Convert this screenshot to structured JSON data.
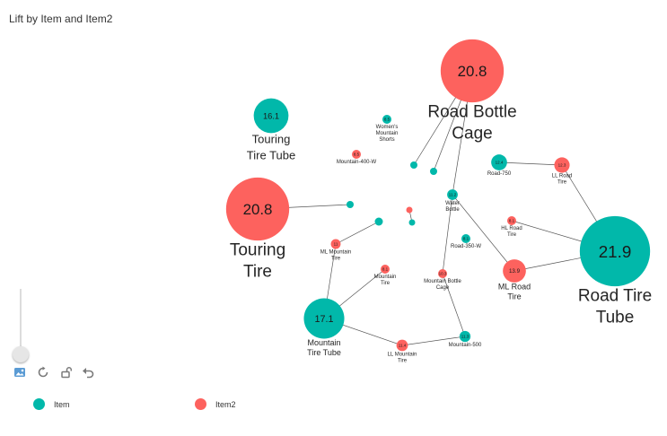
{
  "title": "Lift by Item and Item2",
  "colors": {
    "item": "#01b8aa",
    "item2": "#fd625e",
    "edge": "#555555"
  },
  "legend": [
    {
      "label": "Item",
      "color": "#01b8aa"
    },
    {
      "label": "Item2",
      "color": "#fd625e"
    }
  ],
  "chart_data": {
    "type": "network",
    "metric": "Lift",
    "categories": [
      "Item",
      "Item2"
    ],
    "nodes": [
      {
        "id": "road-bottle-cage",
        "label": "Road Bottle Cage",
        "value": 20.8,
        "group": "Item2"
      },
      {
        "id": "touring-tire-tube",
        "label": "Touring Tire Tube",
        "value": 16.1,
        "group": "Item"
      },
      {
        "id": "touring-tire",
        "label": "Touring Tire",
        "value": 20.8,
        "group": "Item2"
      },
      {
        "id": "womens-mountain-shorts",
        "label": "Women's Mountain Shorts",
        "value": 8.5,
        "group": "Item"
      },
      {
        "id": "mountain-400-w",
        "label": "Mountain-400-W",
        "value": 8.5,
        "group": "Item2"
      },
      {
        "id": "road-750",
        "label": "Road-750",
        "value": 12.4,
        "group": "Item"
      },
      {
        "id": "ll-road-tire",
        "label": "LL Road Tire",
        "value": 12.3,
        "group": "Item2"
      },
      {
        "id": "water-bottle",
        "label": "Water Bottle",
        "value": 11.2,
        "group": "Item"
      },
      {
        "id": "hl-road-tire",
        "label": "HL Road Tire",
        "value": 8.1,
        "group": "Item2"
      },
      {
        "id": "road-tire-tube",
        "label": "Road Tire Tube",
        "value": 21.9,
        "group": "Item"
      },
      {
        "id": "ml-mountain-tire",
        "label": "ML Mountain Tire",
        "value": 11,
        "group": "Item2"
      },
      {
        "id": "road-350-w",
        "label": "Road-350-W",
        "value": 8.1,
        "group": "Item"
      },
      {
        "id": "ml-road-tire",
        "label": "ML Road Tire",
        "value": 13.9,
        "group": "Item2"
      },
      {
        "id": "mountain-tire",
        "label": "Mountain Tire",
        "value": 8.1,
        "group": "Item2"
      },
      {
        "id": "mountain-bottle-cage",
        "label": "Mountain Bottle Cage",
        "value": 10.3,
        "group": "Item2"
      },
      {
        "id": "mountain-tire-tube",
        "label": "Mountain Tire Tube",
        "value": 17.1,
        "group": "Item"
      },
      {
        "id": "ll-mountain-tire",
        "label": "LL Mountain Tire",
        "value": 11.4,
        "group": "Item2"
      },
      {
        "id": "mountain-500",
        "label": "Mountain-500",
        "value": 11.3,
        "group": "Item"
      },
      {
        "id": "sm-item-a",
        "label": "",
        "value": null,
        "group": "Item"
      },
      {
        "id": "sm-item-b",
        "label": "",
        "value": null,
        "group": "Item"
      },
      {
        "id": "sm-item-c",
        "label": "",
        "value": null,
        "group": "Item"
      },
      {
        "id": "sm-item-d",
        "label": "",
        "value": null,
        "group": "Item"
      },
      {
        "id": "sm-item-e",
        "label": "",
        "value": null,
        "group": "Item"
      },
      {
        "id": "sm-item2-a",
        "label": "",
        "value": null,
        "group": "Item2"
      }
    ],
    "edges": [
      [
        "touring-tire",
        "sm-item-c"
      ],
      [
        "road-bottle-cage",
        "sm-item-a"
      ],
      [
        "road-bottle-cage",
        "sm-item-b"
      ],
      [
        "road-bottle-cage",
        "water-bottle"
      ],
      [
        "road-750",
        "ll-road-tire"
      ],
      [
        "ll-road-tire",
        "road-tire-tube"
      ],
      [
        "hl-road-tire",
        "road-tire-tube"
      ],
      [
        "ml-road-tire",
        "road-tire-tube"
      ],
      [
        "water-bottle",
        "mountain-bottle-cage"
      ],
      [
        "water-bottle",
        "ml-road-tire"
      ],
      [
        "mountain-bottle-cage",
        "mountain-500"
      ],
      [
        "mountain-500",
        "ll-mountain-tire"
      ],
      [
        "ll-mountain-tire",
        "mountain-tire-tube"
      ],
      [
        "mountain-tire-tube",
        "ml-mountain-tire"
      ],
      [
        "mountain-tire-tube",
        "mountain-tire"
      ],
      [
        "ml-mountain-tire",
        "sm-item-d"
      ],
      [
        "sm-item2-a",
        "sm-item-e"
      ]
    ]
  }
}
